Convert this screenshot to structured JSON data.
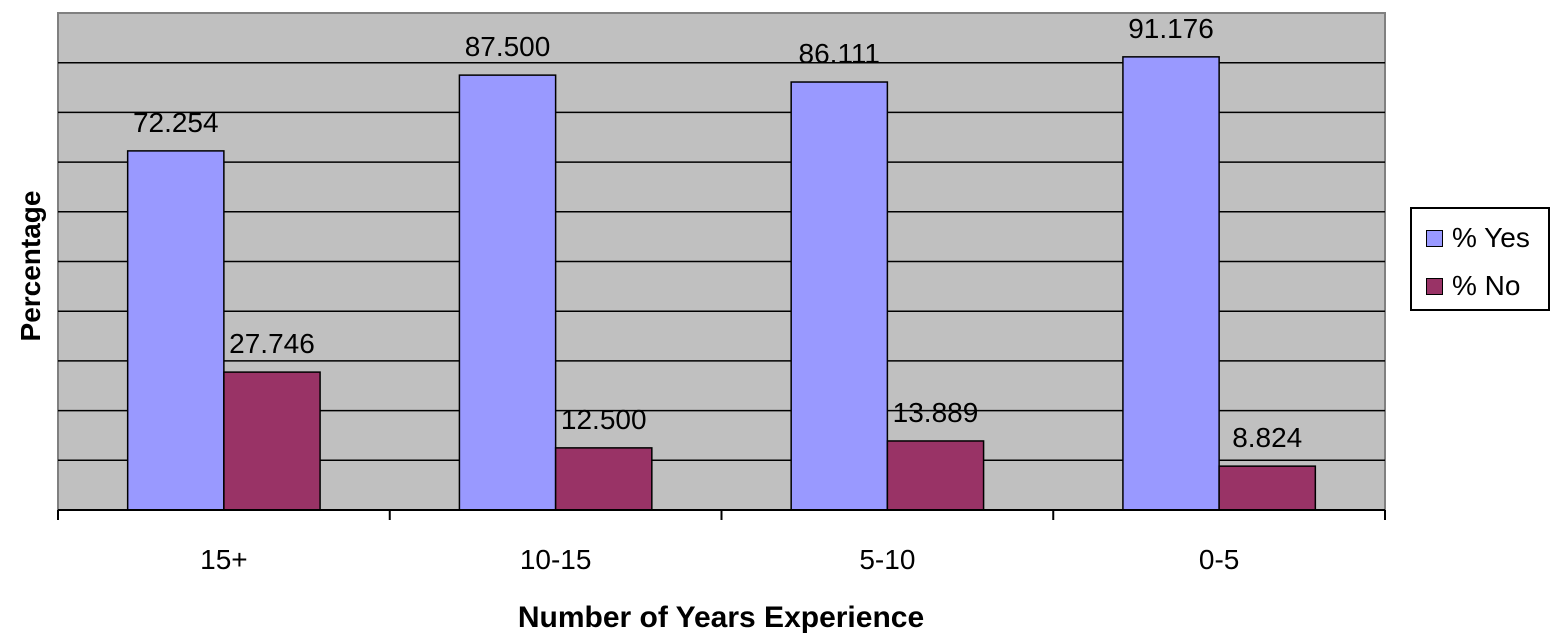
{
  "chart_data": {
    "type": "bar",
    "categories": [
      "15+",
      "10-15",
      "5-10",
      "0-5"
    ],
    "series": [
      {
        "name": "% Yes",
        "color": "#9999ff",
        "values": [
          72.254,
          87.5,
          86.111,
          91.176
        ]
      },
      {
        "name": "% No",
        "color": "#993366",
        "values": [
          27.746,
          12.5,
          13.889,
          8.824
        ]
      }
    ],
    "data_labels": {
      "% Yes": [
        "72.254",
        "87.500",
        "86.111",
        "91.176"
      ],
      "% No": [
        "27.746",
        "12.500",
        "13.889",
        "8.824"
      ]
    },
    "xlabel": "Number of Years Experience",
    "ylabel": "Percentage",
    "ylim": [
      0,
      100
    ],
    "grid": true,
    "plot_background": "#c0c0c0",
    "legend_position": "right"
  }
}
